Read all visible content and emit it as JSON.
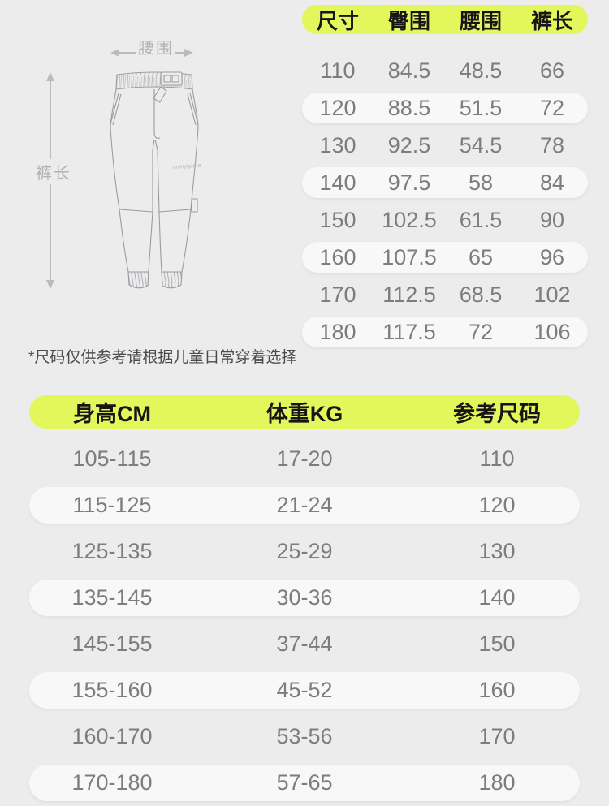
{
  "colors": {
    "background": "#ececec",
    "highlight": "#e3f65c",
    "row_pill": "#f8f8f8",
    "header_text": "#161616",
    "value_text": "#7d7d7d",
    "diagram_line": "#9b9ba1",
    "diagram_label": "#b2b2b6"
  },
  "diagram": {
    "waist_label": "腰围",
    "length_label": "裤长",
    "brand_text": "onmygame"
  },
  "size_table": {
    "headers": [
      "尺寸",
      "臀围",
      "腰围",
      "裤长"
    ],
    "rows": [
      [
        "110",
        "84.5",
        "48.5",
        "66"
      ],
      [
        "120",
        "88.5",
        "51.5",
        "72"
      ],
      [
        "130",
        "92.5",
        "54.5",
        "78"
      ],
      [
        "140",
        "97.5",
        "58",
        "84"
      ],
      [
        "150",
        "102.5",
        "61.5",
        "90"
      ],
      [
        "160",
        "107.5",
        "65",
        "96"
      ],
      [
        "170",
        "112.5",
        "68.5",
        "102"
      ],
      [
        "180",
        "117.5",
        "72",
        "106"
      ]
    ]
  },
  "note": "*尺码仅供参考请根据儿童日常穿着选择",
  "fit_table": {
    "headers": [
      "身高CM",
      "体重KG",
      "参考尺码"
    ],
    "rows": [
      [
        "105-115",
        "17-20",
        "110"
      ],
      [
        "115-125",
        "21-24",
        "120"
      ],
      [
        "125-135",
        "25-29",
        "130"
      ],
      [
        "135-145",
        "30-36",
        "140"
      ],
      [
        "145-155",
        "37-44",
        "150"
      ],
      [
        "155-160",
        "45-52",
        "160"
      ],
      [
        "160-170",
        "53-56",
        "170"
      ],
      [
        "170-180",
        "57-65",
        "180"
      ]
    ]
  }
}
